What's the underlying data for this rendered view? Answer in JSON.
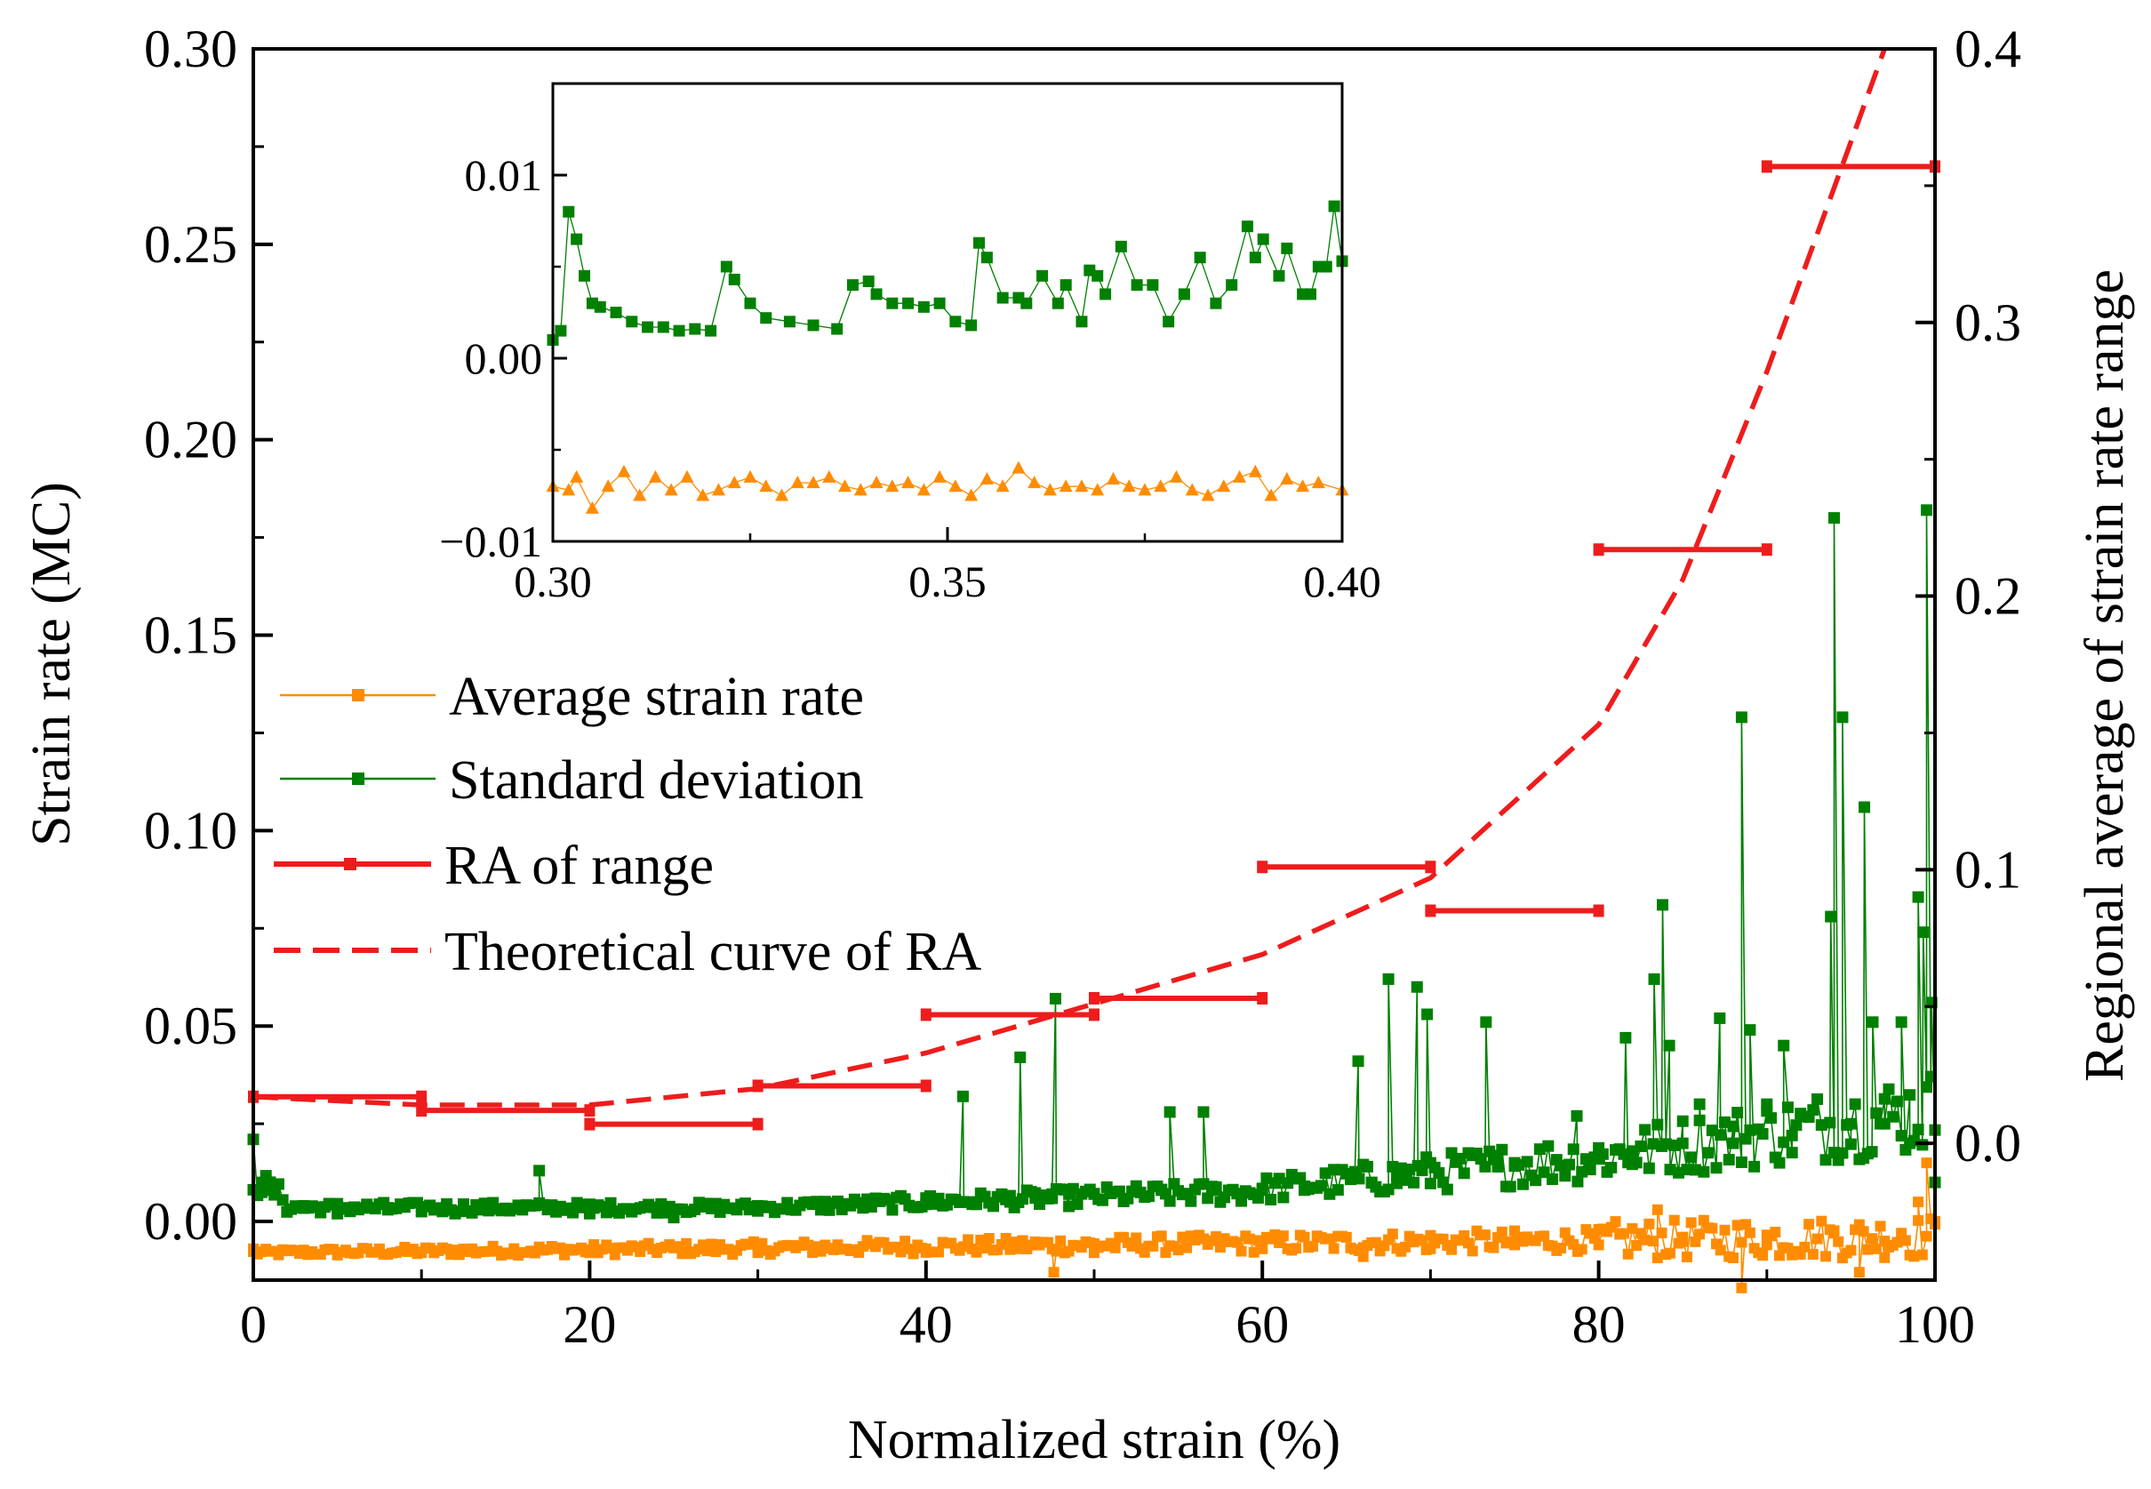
{
  "chart_data": {
    "type": "scatter",
    "xlabel": "Normalized strain (%)",
    "ylabel_left": "Strain rate (MC)",
    "ylabel_right": "Regional average of strain rate range",
    "xlim": [
      0,
      100
    ],
    "ylim_left": [
      -0.015,
      0.3
    ],
    "ylim_right": [
      -0.05,
      0.4
    ],
    "x_ticks": [
      "0",
      "20",
      "40",
      "60",
      "80",
      "100"
    ],
    "y_left_ticks": [
      "0.00",
      "0.05",
      "0.10",
      "0.15",
      "0.20",
      "0.25",
      "0.30"
    ],
    "y_right_ticks": [
      "0.0",
      "0.1",
      "0.2",
      "0.3",
      "0.4"
    ],
    "colors": {
      "average": "#FF8C00",
      "stddev": "#008000",
      "ra": "#EE1C1C",
      "axis": "#000000"
    },
    "legend": [
      {
        "label": "Average strain rate",
        "style": "orange line with square markers"
      },
      {
        "label": "Standard deviation",
        "style": "green line with square markers"
      },
      {
        "label": "RA of range",
        "style": "red segment with square end markers"
      },
      {
        "label": "Theoretical curve of RA",
        "style": "red dashed line"
      }
    ],
    "ra_of_range": [
      {
        "x_start": 0,
        "x_end": 10,
        "y": 0.017
      },
      {
        "x_start": 10,
        "x_end": 20,
        "y": 0.012
      },
      {
        "x_start": 20,
        "x_end": 30,
        "y": 0.007
      },
      {
        "x_start": 30,
        "x_end": 40,
        "y": 0.021
      },
      {
        "x_start": 40,
        "x_end": 50,
        "y": 0.047
      },
      {
        "x_start": 50,
        "x_end": 60,
        "y": 0.053
      },
      {
        "x_start": 60,
        "x_end": 70,
        "y": 0.101
      },
      {
        "x_start": 70,
        "x_end": 80,
        "y": 0.085
      },
      {
        "x_start": 80,
        "x_end": 90,
        "y": 0.217
      },
      {
        "x_start": 90,
        "x_end": 100,
        "y": 0.357
      }
    ],
    "theoretical_curve": {
      "x": [
        0,
        10,
        20,
        30,
        40,
        50,
        60,
        70,
        80,
        85,
        90,
        95,
        97
      ],
      "y": [
        0.017,
        0.014,
        0.014,
        0.02,
        0.033,
        0.051,
        0.069,
        0.097,
        0.153,
        0.206,
        0.282,
        0.366,
        0.4
      ]
    },
    "average_strain_rate": {
      "baseline": -0.008,
      "x": [
        0,
        10,
        20,
        30,
        40,
        47.6,
        50,
        60,
        66,
        70,
        75,
        80,
        83.5,
        85,
        88.5,
        90,
        94,
        95.5,
        97,
        98,
        99,
        99.5,
        100
      ],
      "y": [
        -0.007,
        -0.008,
        -0.008,
        -0.008,
        -0.007,
        -0.013,
        -0.008,
        -0.007,
        -0.009,
        -0.007,
        -0.006,
        -0.006,
        0.003,
        -0.004,
        -0.017,
        -0.006,
        -0.003,
        -0.013,
        -0.005,
        -0.003,
        0.005,
        0.015,
        0.0
      ]
    },
    "standard_deviation": {
      "x": [
        0,
        0.5,
        1,
        3,
        5,
        8,
        12,
        16,
        17,
        18,
        20,
        25,
        30,
        35,
        40,
        42.2,
        43,
        45,
        45.6,
        46.5,
        47.5,
        47.7,
        48.5,
        50,
        54,
        54.5,
        56.5,
        57,
        60,
        62.5,
        65.7,
        66.5,
        67.5,
        68,
        69.2,
        69.8,
        70,
        73.3,
        74,
        75,
        78.7,
        80,
        81.6,
        82,
        83.3,
        83.8,
        84.2,
        85,
        86,
        87.2,
        88,
        88.5,
        89,
        90,
        91,
        91.5,
        93.8,
        94,
        94.5,
        95,
        95.8,
        96.3,
        97,
        98,
        98.5,
        99,
        99.3,
        99.5,
        99.8,
        100
      ],
      "y": [
        0.021,
        0.01,
        0.008,
        0.004,
        0.002,
        0.003,
        0.002,
        0.003,
        0.013,
        0.003,
        0.002,
        0.001,
        0.004,
        0.004,
        0.006,
        0.032,
        0.005,
        0.005,
        0.042,
        0.006,
        0.007,
        0.057,
        0.007,
        0.007,
        0.008,
        0.028,
        0.028,
        0.008,
        0.008,
        0.009,
        0.041,
        0.01,
        0.062,
        0.012,
        0.06,
        0.053,
        0.015,
        0.051,
        0.014,
        0.015,
        0.027,
        0.016,
        0.047,
        0.018,
        0.062,
        0.081,
        0.045,
        0.02,
        0.03,
        0.052,
        0.02,
        0.129,
        0.049,
        0.03,
        0.045,
        0.022,
        0.078,
        0.18,
        0.129,
        0.025,
        0.106,
        0.051,
        0.025,
        0.051,
        0.02,
        0.083,
        0.074,
        0.182,
        0.056,
        0.01
      ]
    },
    "inset": {
      "xlim": [
        0.3,
        0.4
      ],
      "ylim": [
        -0.01,
        0.015
      ],
      "x_ticks": [
        "0.30",
        "0.35",
        "0.40"
      ],
      "y_ticks": [
        "0.01",
        "0.00",
        "−0.01"
      ],
      "standard_deviation": {
        "x": [
          0.3,
          0.301,
          0.302,
          0.303,
          0.304,
          0.305,
          0.306,
          0.308,
          0.31,
          0.312,
          0.314,
          0.316,
          0.318,
          0.32,
          0.322,
          0.323,
          0.325,
          0.327,
          0.33,
          0.333,
          0.336,
          0.338,
          0.34,
          0.341,
          0.343,
          0.345,
          0.347,
          0.349,
          0.351,
          0.353,
          0.354,
          0.355,
          0.357,
          0.359,
          0.36,
          0.362,
          0.364,
          0.365,
          0.367,
          0.368,
          0.369,
          0.37,
          0.372,
          0.374,
          0.376,
          0.378,
          0.38,
          0.382,
          0.384,
          0.386,
          0.388,
          0.389,
          0.39,
          0.392,
          0.393,
          0.395,
          0.396,
          0.397,
          0.398,
          0.399,
          0.4
        ],
        "y": [
          0.001,
          0.0015,
          0.008,
          0.0065,
          0.0045,
          0.003,
          0.0028,
          0.0025,
          0.002,
          0.0017,
          0.0017,
          0.0015,
          0.0016,
          0.0015,
          0.005,
          0.0043,
          0.003,
          0.0022,
          0.002,
          0.0018,
          0.0016,
          0.004,
          0.0042,
          0.0035,
          0.003,
          0.003,
          0.0028,
          0.003,
          0.002,
          0.0018,
          0.0063,
          0.0055,
          0.0033,
          0.0033,
          0.003,
          0.0045,
          0.003,
          0.004,
          0.002,
          0.0048,
          0.0045,
          0.0035,
          0.0061,
          0.004,
          0.004,
          0.002,
          0.0035,
          0.0055,
          0.003,
          0.004,
          0.0072,
          0.0055,
          0.0065,
          0.0045,
          0.006,
          0.0035,
          0.0035,
          0.005,
          0.005,
          0.0083,
          0.0053
        ]
      },
      "average_strain_rate": {
        "x": [
          0.3,
          0.302,
          0.303,
          0.305,
          0.307,
          0.309,
          0.311,
          0.313,
          0.315,
          0.317,
          0.319,
          0.321,
          0.323,
          0.325,
          0.327,
          0.329,
          0.331,
          0.333,
          0.335,
          0.337,
          0.339,
          0.341,
          0.343,
          0.345,
          0.347,
          0.349,
          0.351,
          0.353,
          0.355,
          0.357,
          0.359,
          0.361,
          0.363,
          0.365,
          0.367,
          0.369,
          0.371,
          0.373,
          0.375,
          0.377,
          0.379,
          0.381,
          0.383,
          0.385,
          0.387,
          0.389,
          0.391,
          0.393,
          0.395,
          0.397,
          0.4
        ],
        "y": [
          -0.007,
          -0.0072,
          -0.0065,
          -0.0082,
          -0.007,
          -0.0062,
          -0.0075,
          -0.0065,
          -0.0072,
          -0.0065,
          -0.0075,
          -0.0072,
          -0.0068,
          -0.0065,
          -0.007,
          -0.0075,
          -0.0068,
          -0.0068,
          -0.0065,
          -0.007,
          -0.0072,
          -0.0068,
          -0.007,
          -0.0068,
          -0.0072,
          -0.0065,
          -0.007,
          -0.0075,
          -0.0066,
          -0.007,
          -0.006,
          -0.0068,
          -0.0072,
          -0.007,
          -0.007,
          -0.0072,
          -0.0066,
          -0.007,
          -0.0072,
          -0.007,
          -0.0065,
          -0.0072,
          -0.0075,
          -0.007,
          -0.0065,
          -0.0062,
          -0.0075,
          -0.0066,
          -0.007,
          -0.0068,
          -0.0072
        ]
      }
    }
  }
}
